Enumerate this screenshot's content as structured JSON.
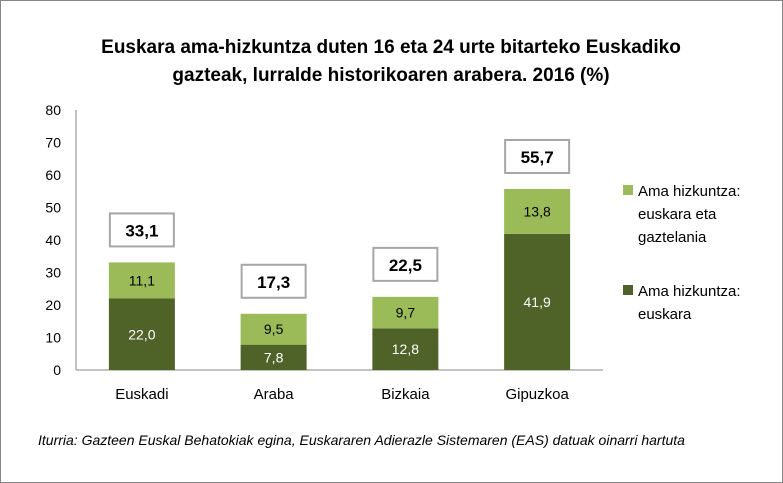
{
  "chart_data": {
    "type": "bar",
    "stacked": true,
    "title": "Euskara ama-hizkuntza duten 16 eta 24 urte bitarteko Euskadiko gazteak, lurralde historikoaren arabera. 2016 (%)",
    "title_lines": [
      "Euskara ama-hizkuntza duten 16 eta 24 urte bitarteko Euskadiko",
      "gazteak, lurralde historikoaren arabera. 2016 (%)"
    ],
    "categories": [
      "Euskadi",
      "Araba",
      "Bizkaia",
      "Gipuzkoa"
    ],
    "series": [
      {
        "name": "Ama hizkuntza: euskara",
        "legend_lines": [
          "Ama hizkuntza:",
          "euskara"
        ],
        "color": "#4f6228",
        "values": [
          22.0,
          7.8,
          12.8,
          41.9
        ],
        "labels": [
          "22,0",
          "7,8",
          "12,8",
          "41,9"
        ]
      },
      {
        "name": "Ama hizkuntza: euskara eta gaztelania",
        "legend_lines": [
          "Ama hizkuntza:",
          "euskara eta",
          "gaztelania"
        ],
        "color": "#9bbb59",
        "values": [
          11.1,
          9.5,
          9.7,
          13.8
        ],
        "labels": [
          "11,1",
          "9,5",
          "9,7",
          "13,8"
        ]
      }
    ],
    "totals": [
      33.1,
      17.3,
      22.5,
      55.7
    ],
    "total_labels": [
      "33,1",
      "17,3",
      "22,5",
      "55,7"
    ],
    "ylim": [
      0,
      80
    ],
    "yticks": [
      "0",
      "10",
      "20",
      "30",
      "40",
      "50",
      "60",
      "70",
      "80"
    ],
    "xlabel": "",
    "ylabel": "",
    "grid": false,
    "legend": "right",
    "source": "Iturria: Gazteen Euskal Behatokiak egina, Euskararen Adierazle Sistemaren (EAS) datuak oinarri hartuta"
  }
}
